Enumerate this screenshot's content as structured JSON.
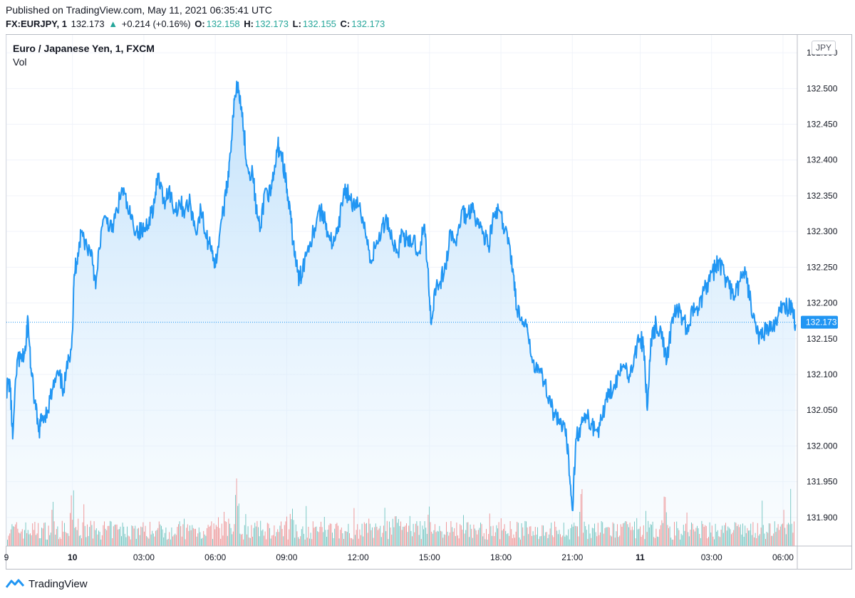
{
  "header": {
    "published": "Published on TradingView.com, May 11, 2021 06:35:41 UTC",
    "symbol": "FX:EURJPY, 1",
    "last": "132.173",
    "change": "+0.214 (+0.16%)",
    "o_label": "O:",
    "o_value": "132.158",
    "h_label": "H:",
    "h_value": "132.173",
    "l_label": "L:",
    "l_value": "132.155",
    "c_label": "C:",
    "c_value": "132.173"
  },
  "chart": {
    "series_title": "Euro / Japanese Yen, 1, FXCM",
    "volume_label": "Vol",
    "currency": "JPY",
    "last_price_tag": "132.173"
  },
  "footer": {
    "brand": "TradingView"
  },
  "colors": {
    "line": "#2196f3",
    "area_top": "#bbdefb",
    "vol_up": "#26a69a",
    "vol_down": "#ef5350",
    "last_line": "#2196f3",
    "grid": "#f0f3fa"
  },
  "chart_data": {
    "type": "area",
    "ylim": [
      131.86,
      132.575
    ],
    "y_ticks": [
      131.9,
      131.95,
      132.0,
      132.05,
      132.1,
      132.15,
      132.2,
      132.25,
      132.3,
      132.35,
      132.4,
      132.45,
      132.5,
      132.55
    ],
    "y_tick_labels": [
      "131.900",
      "131.950",
      "132.000",
      "132.050",
      "132.100",
      "132.150",
      "132.200",
      "132.250",
      "132.300",
      "132.350",
      "132.400",
      "132.450",
      "132.500",
      "132.550"
    ],
    "x_ticks": [
      {
        "label": "9",
        "t": 0,
        "bold": false
      },
      {
        "label": "10",
        "t": 3.7,
        "bold": true
      },
      {
        "label": "03:00",
        "t": 7.7,
        "bold": false
      },
      {
        "label": "06:00",
        "t": 11.7,
        "bold": false
      },
      {
        "label": "09:00",
        "t": 15.7,
        "bold": false
      },
      {
        "label": "12:00",
        "t": 19.7,
        "bold": false
      },
      {
        "label": "15:00",
        "t": 23.7,
        "bold": false
      },
      {
        "label": "18:00",
        "t": 27.7,
        "bold": false
      },
      {
        "label": "21:00",
        "t": 31.7,
        "bold": false
      },
      {
        "label": "11",
        "t": 35.5,
        "bold": true
      },
      {
        "label": "03:00",
        "t": 39.5,
        "bold": false
      },
      {
        "label": "06:00",
        "t": 43.5,
        "bold": false
      }
    ],
    "x_range": [
      0,
      44.3
    ],
    "last_price": 132.173,
    "series": [
      {
        "name": "EURJPY",
        "points": [
          [
            0.0,
            132.08
          ],
          [
            0.2,
            132.09
          ],
          [
            0.35,
            132.01
          ],
          [
            0.6,
            132.12
          ],
          [
            0.9,
            132.12
          ],
          [
            1.1,
            132.14
          ],
          [
            1.2,
            132.18
          ],
          [
            1.4,
            132.1
          ],
          [
            1.6,
            132.06
          ],
          [
            1.8,
            132.02
          ],
          [
            2.0,
            132.04
          ],
          [
            2.3,
            132.05
          ],
          [
            2.6,
            132.08
          ],
          [
            2.9,
            132.1
          ],
          [
            3.2,
            132.08
          ],
          [
            3.5,
            132.12
          ],
          [
            3.7,
            132.16
          ],
          [
            3.8,
            132.24
          ],
          [
            4.0,
            132.27
          ],
          [
            4.2,
            132.3
          ],
          [
            4.5,
            132.28
          ],
          [
            4.8,
            132.27
          ],
          [
            5.0,
            132.22
          ],
          [
            5.3,
            132.3
          ],
          [
            5.6,
            132.32
          ],
          [
            5.9,
            132.3
          ],
          [
            6.2,
            132.33
          ],
          [
            6.5,
            132.36
          ],
          [
            6.8,
            132.33
          ],
          [
            7.1,
            132.31
          ],
          [
            7.4,
            132.3
          ],
          [
            7.7,
            132.3
          ],
          [
            8.0,
            132.32
          ],
          [
            8.3,
            132.34
          ],
          [
            8.5,
            132.38
          ],
          [
            8.8,
            132.34
          ],
          [
            9.1,
            132.36
          ],
          [
            9.4,
            132.33
          ],
          [
            9.7,
            132.34
          ],
          [
            10.0,
            132.33
          ],
          [
            10.3,
            132.34
          ],
          [
            10.6,
            132.3
          ],
          [
            10.9,
            132.33
          ],
          [
            11.2,
            132.29
          ],
          [
            11.5,
            132.28
          ],
          [
            11.7,
            132.25
          ],
          [
            12.0,
            132.31
          ],
          [
            12.3,
            132.35
          ],
          [
            12.5,
            132.4
          ],
          [
            12.7,
            132.46
          ],
          [
            12.9,
            132.51
          ],
          [
            13.1,
            132.49
          ],
          [
            13.3,
            132.44
          ],
          [
            13.5,
            132.39
          ],
          [
            13.8,
            132.38
          ],
          [
            14.0,
            132.33
          ],
          [
            14.2,
            132.3
          ],
          [
            14.5,
            132.36
          ],
          [
            14.8,
            132.35
          ],
          [
            15.0,
            132.38
          ],
          [
            15.2,
            132.42
          ],
          [
            15.4,
            132.41
          ],
          [
            15.6,
            132.38
          ],
          [
            15.8,
            132.34
          ],
          [
            16.0,
            132.3
          ],
          [
            16.2,
            132.26
          ],
          [
            16.4,
            132.23
          ],
          [
            16.6,
            132.25
          ],
          [
            16.9,
            132.28
          ],
          [
            17.2,
            132.3
          ],
          [
            17.5,
            132.33
          ],
          [
            17.8,
            132.32
          ],
          [
            18.0,
            132.3
          ],
          [
            18.3,
            132.28
          ],
          [
            18.6,
            132.3
          ],
          [
            18.9,
            132.36
          ],
          [
            19.2,
            132.35
          ],
          [
            19.5,
            132.33
          ],
          [
            19.8,
            132.34
          ],
          [
            20.1,
            132.3
          ],
          [
            20.4,
            132.26
          ],
          [
            20.7,
            132.28
          ],
          [
            21.0,
            132.3
          ],
          [
            21.3,
            132.32
          ],
          [
            21.6,
            132.29
          ],
          [
            21.9,
            132.27
          ],
          [
            22.2,
            132.3
          ],
          [
            22.5,
            132.28
          ],
          [
            22.8,
            132.29
          ],
          [
            23.1,
            132.27
          ],
          [
            23.4,
            132.31
          ],
          [
            23.6,
            132.25
          ],
          [
            23.8,
            132.17
          ],
          [
            24.0,
            132.22
          ],
          [
            24.3,
            132.23
          ],
          [
            24.6,
            132.25
          ],
          [
            24.9,
            132.3
          ],
          [
            25.2,
            132.28
          ],
          [
            25.5,
            132.33
          ],
          [
            25.8,
            132.32
          ],
          [
            26.1,
            132.34
          ],
          [
            26.4,
            132.31
          ],
          [
            26.7,
            132.3
          ],
          [
            27.0,
            132.28
          ],
          [
            27.3,
            132.32
          ],
          [
            27.6,
            132.33
          ],
          [
            27.9,
            132.3
          ],
          [
            28.2,
            132.28
          ],
          [
            28.4,
            132.24
          ],
          [
            28.6,
            132.19
          ],
          [
            28.9,
            132.17
          ],
          [
            29.2,
            132.16
          ],
          [
            29.5,
            132.12
          ],
          [
            29.8,
            132.11
          ],
          [
            30.1,
            132.09
          ],
          [
            30.4,
            132.07
          ],
          [
            30.7,
            132.04
          ],
          [
            31.0,
            132.03
          ],
          [
            31.3,
            132.02
          ],
          [
            31.5,
            131.98
          ],
          [
            31.7,
            131.91
          ],
          [
            31.9,
            132.01
          ],
          [
            32.2,
            132.03
          ],
          [
            32.5,
            132.04
          ],
          [
            32.8,
            132.03
          ],
          [
            33.1,
            132.02
          ],
          [
            33.4,
            132.04
          ],
          [
            33.7,
            132.08
          ],
          [
            34.0,
            132.08
          ],
          [
            34.3,
            132.1
          ],
          [
            34.6,
            132.11
          ],
          [
            34.9,
            132.1
          ],
          [
            35.2,
            132.13
          ],
          [
            35.5,
            132.15
          ],
          [
            35.7,
            132.14
          ],
          [
            35.9,
            132.05
          ],
          [
            36.1,
            132.15
          ],
          [
            36.4,
            132.17
          ],
          [
            36.7,
            132.15
          ],
          [
            37.0,
            132.12
          ],
          [
            37.3,
            132.18
          ],
          [
            37.6,
            132.19
          ],
          [
            37.9,
            132.18
          ],
          [
            38.2,
            132.16
          ],
          [
            38.5,
            132.2
          ],
          [
            38.8,
            132.19
          ],
          [
            39.1,
            132.22
          ],
          [
            39.4,
            132.23
          ],
          [
            39.7,
            132.25
          ],
          [
            39.9,
            132.26
          ],
          [
            40.2,
            132.24
          ],
          [
            40.5,
            132.22
          ],
          [
            40.8,
            132.21
          ],
          [
            41.1,
            132.23
          ],
          [
            41.4,
            132.24
          ],
          [
            41.7,
            132.2
          ],
          [
            42.0,
            132.16
          ],
          [
            42.3,
            132.15
          ],
          [
            42.6,
            132.17
          ],
          [
            42.9,
            132.16
          ],
          [
            43.2,
            132.18
          ],
          [
            43.5,
            132.2
          ],
          [
            43.8,
            132.19
          ],
          [
            44.0,
            132.2
          ],
          [
            44.2,
            132.17
          ]
        ]
      }
    ],
    "volume": {
      "peaks": [
        [
          3.7,
          0.9
        ],
        [
          12.9,
          0.95
        ],
        [
          16.0,
          0.75
        ],
        [
          21.7,
          0.78
        ],
        [
          23.6,
          0.65
        ],
        [
          32.2,
          0.7
        ],
        [
          36.8,
          1.0
        ],
        [
          43.9,
          0.85
        ]
      ],
      "base_level": 0.28
    }
  }
}
